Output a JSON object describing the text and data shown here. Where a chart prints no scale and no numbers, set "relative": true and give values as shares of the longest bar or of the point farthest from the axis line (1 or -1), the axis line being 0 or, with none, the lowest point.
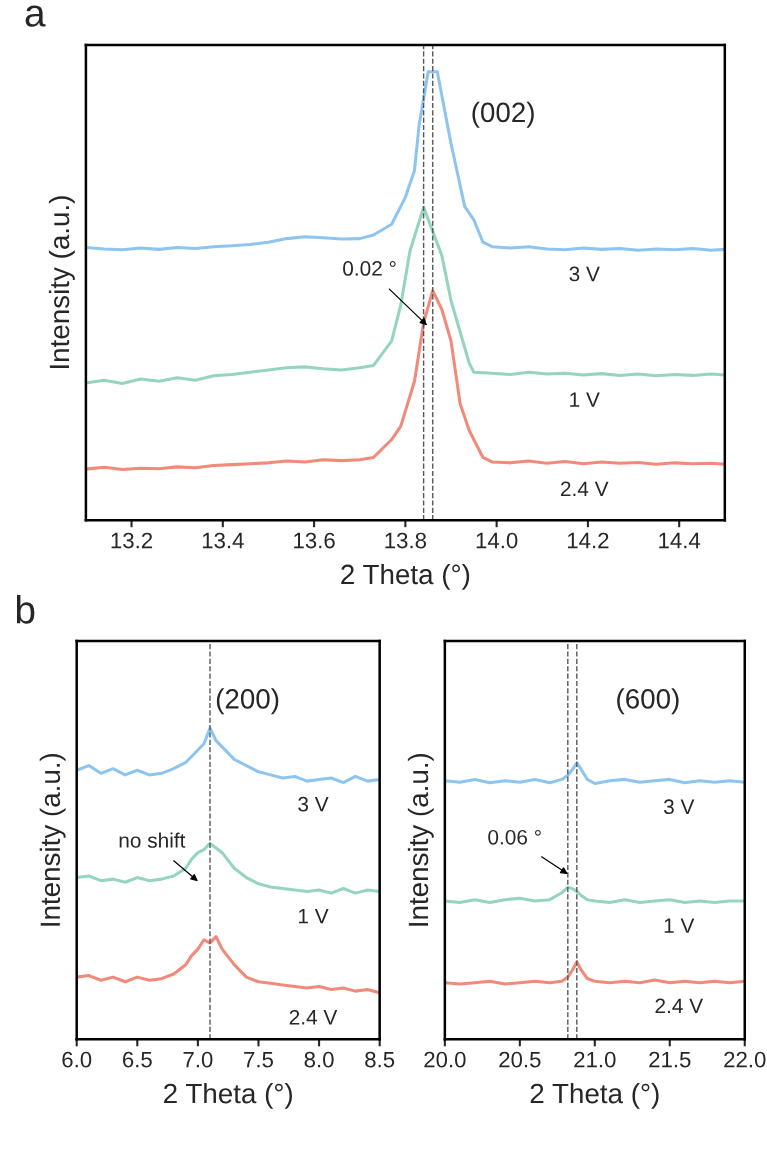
{
  "chart_data": [
    {
      "type": "line",
      "relative": true,
      "xlabel": "2 Theta (°)",
      "ylabel": "Intensity (a.u.)",
      "xlim": [
        13.1,
        14.5
      ],
      "xticks": [
        13.2,
        13.4,
        13.6,
        13.8,
        {
          "value": 14.0,
          "label": "14.0"
        },
        14.2,
        14.4
      ],
      "grid": false,
      "legend": false,
      "line_style": "solid",
      "annotations": [
        "a",
        "(002)",
        "0.02 °"
      ],
      "ref_lines": [
        {
          "axis": "x",
          "value": 13.84,
          "color": "#555555",
          "line_style": "dashed"
        },
        {
          "axis": "x",
          "value": 13.86,
          "color": "#555555",
          "line_style": "dashed"
        }
      ],
      "series": [
        {
          "name": "3 V",
          "color": "#8ec5f0",
          "x": [
            13.1,
            13.14,
            13.18,
            13.22,
            13.26,
            13.3,
            13.34,
            13.38,
            13.42,
            13.46,
            13.5,
            13.54,
            13.58,
            13.62,
            13.66,
            13.7,
            13.73,
            13.77,
            13.8,
            13.82,
            13.83,
            13.85,
            13.87,
            13.9,
            13.93,
            13.95,
            13.97,
            13.99,
            14.03,
            14.07,
            14.11,
            14.15,
            14.19,
            14.23,
            14.27,
            14.31,
            14.35,
            14.39,
            14.43,
            14.47,
            14.5
          ],
          "values": [
            0.608,
            0.605,
            0.603,
            0.607,
            0.604,
            0.608,
            0.606,
            0.61,
            0.612,
            0.615,
            0.62,
            0.628,
            0.632,
            0.63,
            0.627,
            0.628,
            0.636,
            0.66,
            0.72,
            0.78,
            0.88,
            1.0,
            1.0,
            0.84,
            0.7,
            0.67,
            0.62,
            0.61,
            0.607,
            0.61,
            0.605,
            0.603,
            0.607,
            0.604,
            0.606,
            0.602,
            0.605,
            0.603,
            0.606,
            0.602,
            0.604
          ]
        },
        {
          "name": "1 V",
          "color": "#95d5c0",
          "x": [
            13.1,
            13.14,
            13.18,
            13.22,
            13.26,
            13.3,
            13.34,
            13.38,
            13.42,
            13.46,
            13.5,
            13.54,
            13.58,
            13.62,
            13.66,
            13.7,
            13.73,
            13.77,
            13.79,
            13.81,
            13.84,
            13.88,
            13.9,
            13.94,
            13.95,
            13.99,
            14.03,
            14.07,
            14.11,
            14.15,
            14.19,
            14.23,
            14.27,
            14.31,
            14.35,
            14.39,
            14.43,
            14.47,
            14.5
          ],
          "values": [
            0.306,
            0.312,
            0.305,
            0.315,
            0.31,
            0.318,
            0.312,
            0.322,
            0.325,
            0.33,
            0.335,
            0.34,
            0.342,
            0.338,
            0.335,
            0.34,
            0.345,
            0.4,
            0.48,
            0.6,
            0.698,
            0.59,
            0.49,
            0.35,
            0.33,
            0.328,
            0.325,
            0.33,
            0.326,
            0.328,
            0.324,
            0.327,
            0.323,
            0.326,
            0.322,
            0.325,
            0.323,
            0.326,
            0.324
          ]
        },
        {
          "name": "2.4 V",
          "color": "#f08a7a",
          "x": [
            13.1,
            13.14,
            13.18,
            13.22,
            13.26,
            13.3,
            13.34,
            13.38,
            13.42,
            13.46,
            13.5,
            13.54,
            13.58,
            13.62,
            13.66,
            13.7,
            13.73,
            13.77,
            13.79,
            13.82,
            13.84,
            13.86,
            13.88,
            13.9,
            13.92,
            13.94,
            13.97,
            13.99,
            14.03,
            14.07,
            14.11,
            14.15,
            14.19,
            14.23,
            14.27,
            14.31,
            14.35,
            14.39,
            14.43,
            14.47,
            14.5
          ],
          "values": [
            0.114,
            0.118,
            0.113,
            0.116,
            0.115,
            0.119,
            0.117,
            0.122,
            0.124,
            0.126,
            0.128,
            0.132,
            0.13,
            0.135,
            0.133,
            0.135,
            0.14,
            0.18,
            0.21,
            0.31,
            0.44,
            0.512,
            0.47,
            0.4,
            0.26,
            0.2,
            0.14,
            0.13,
            0.128,
            0.132,
            0.127,
            0.131,
            0.126,
            0.13,
            0.127,
            0.129,
            0.125,
            0.128,
            0.126,
            0.127,
            0.125
          ]
        }
      ]
    },
    {
      "type": "line",
      "relative": true,
      "xlabel": "2 Theta (°)",
      "ylabel": "Intensity (a.u.)",
      "xlim": [
        6.0,
        8.5
      ],
      "xticks": [
        {
          "value": 6.0,
          "label": "6.0"
        },
        6.5,
        {
          "value": 7.0,
          "label": "7.0"
        },
        7.5,
        {
          "value": 8.0,
          "label": "8.0"
        },
        8.5
      ],
      "grid": false,
      "legend": false,
      "line_style": "solid",
      "annotations": [
        "b",
        "(200)",
        "no shift"
      ],
      "ref_lines": [
        {
          "axis": "x",
          "value": 7.1,
          "color": "#555555",
          "line_style": "dashed"
        }
      ],
      "x": [
        6.0,
        6.1,
        6.2,
        6.3,
        6.4,
        6.5,
        6.6,
        6.7,
        6.8,
        6.9,
        6.95,
        7.0,
        7.05,
        7.1,
        7.15,
        7.2,
        7.3,
        7.4,
        7.5,
        7.6,
        7.7,
        7.8,
        7.9,
        8.0,
        8.1,
        8.2,
        8.3,
        8.4,
        8.5
      ],
      "series": [
        {
          "name": "3 V",
          "color": "#8ec5f0",
          "values": [
            0.865,
            0.88,
            0.855,
            0.87,
            0.85,
            0.865,
            0.85,
            0.855,
            0.87,
            0.89,
            0.91,
            0.93,
            0.95,
            1.0,
            0.96,
            0.94,
            0.9,
            0.88,
            0.86,
            0.85,
            0.84,
            0.845,
            0.83,
            0.835,
            0.84,
            0.825,
            0.845,
            0.83,
            0.835
          ]
        },
        {
          "name": "1 V",
          "color": "#95d5c0",
          "values": [
            0.52,
            0.525,
            0.51,
            0.515,
            0.505,
            0.52,
            0.51,
            0.515,
            0.525,
            0.55,
            0.58,
            0.6,
            0.61,
            0.63,
            0.615,
            0.6,
            0.55,
            0.52,
            0.5,
            0.49,
            0.485,
            0.48,
            0.475,
            0.48,
            0.47,
            0.485,
            0.47,
            0.48,
            0.475
          ]
        },
        {
          "name": "2.4 V",
          "color": "#f08a7a",
          "values": [
            0.2,
            0.205,
            0.19,
            0.2,
            0.185,
            0.2,
            0.19,
            0.195,
            0.21,
            0.24,
            0.27,
            0.29,
            0.32,
            0.31,
            0.33,
            0.29,
            0.24,
            0.2,
            0.185,
            0.18,
            0.175,
            0.17,
            0.165,
            0.17,
            0.16,
            0.165,
            0.155,
            0.16,
            0.15
          ]
        }
      ]
    },
    {
      "type": "line",
      "relative": true,
      "xlabel": "2 Theta (°)",
      "ylabel": "Intensity (a.u.)",
      "xlim": [
        20.0,
        22.0
      ],
      "xticks": [
        {
          "value": 20.0,
          "label": "20.0"
        },
        20.5,
        {
          "value": 21.0,
          "label": "21.0"
        },
        21.5,
        {
          "value": 22.0,
          "label": "22.0"
        }
      ],
      "grid": false,
      "legend": false,
      "line_style": "solid",
      "annotations": [
        "(600)",
        "0.06 °"
      ],
      "ref_lines": [
        {
          "axis": "x",
          "value": 20.82,
          "color": "#555555",
          "line_style": "dashed"
        },
        {
          "axis": "x",
          "value": 20.88,
          "color": "#555555",
          "line_style": "dashed"
        }
      ],
      "x": [
        20.0,
        20.1,
        20.2,
        20.3,
        20.4,
        20.5,
        20.6,
        20.7,
        20.78,
        20.82,
        20.85,
        20.88,
        20.91,
        20.95,
        21.0,
        21.1,
        21.2,
        21.3,
        21.4,
        21.5,
        21.6,
        21.7,
        21.8,
        21.9,
        22.0
      ],
      "series": [
        {
          "name": "3 V",
          "color": "#8ec5f0",
          "values": [
            0.935,
            0.93,
            0.94,
            0.928,
            0.935,
            0.93,
            0.94,
            0.928,
            0.94,
            0.955,
            0.975,
            1.0,
            0.975,
            0.94,
            0.925,
            0.935,
            0.94,
            0.93,
            0.935,
            0.94,
            0.928,
            0.935,
            0.93,
            0.935,
            0.93
          ]
        },
        {
          "name": "1 V",
          "color": "#95d5c0",
          "values": [
            0.5,
            0.495,
            0.505,
            0.495,
            0.505,
            0.51,
            0.5,
            0.505,
            0.53,
            0.55,
            0.545,
            0.535,
            0.52,
            0.505,
            0.5,
            0.495,
            0.505,
            0.495,
            0.5,
            0.505,
            0.495,
            0.5,
            0.495,
            0.5,
            0.5
          ]
        },
        {
          "name": "2.4 V",
          "color": "#f08a7a",
          "values": [
            0.205,
            0.2,
            0.205,
            0.21,
            0.2,
            0.205,
            0.21,
            0.205,
            0.21,
            0.225,
            0.25,
            0.28,
            0.25,
            0.22,
            0.21,
            0.205,
            0.21,
            0.205,
            0.215,
            0.205,
            0.21,
            0.205,
            0.21,
            0.205,
            0.21
          ]
        }
      ]
    }
  ]
}
